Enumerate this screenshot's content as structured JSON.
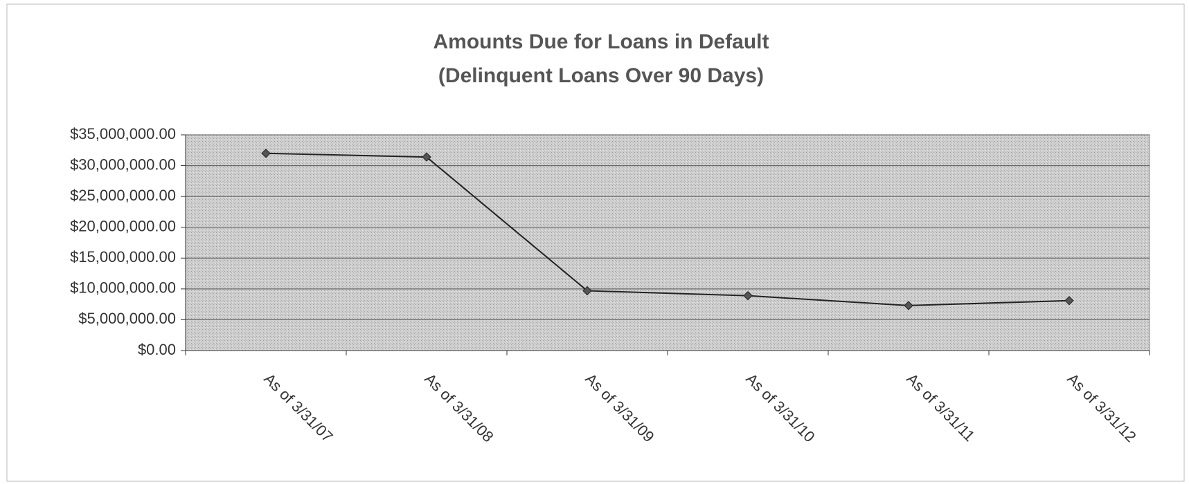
{
  "chart_data": {
    "type": "line",
    "title": "Amounts Due for Loans in Default",
    "subtitle": "(Delinquent Loans Over 90 Days)",
    "categories": [
      "As of 3/31/07",
      "As of 3/31/08",
      "As of 3/31/09",
      "As of 3/31/10",
      "As of 3/31/11",
      "As of 3/31/12"
    ],
    "series": [
      {
        "name": "Amounts Due",
        "color": "#222222",
        "values": [
          32000000,
          31400000,
          9700000,
          8900000,
          7300000,
          8100000
        ]
      }
    ],
    "ylim": [
      0,
      35000000
    ],
    "yticks": [
      {
        "value": 0,
        "label": "$0.00"
      },
      {
        "value": 5000000,
        "label": "$5,000,000.00"
      },
      {
        "value": 10000000,
        "label": "$10,000,000.00"
      },
      {
        "value": 15000000,
        "label": "$15,000,000.00"
      },
      {
        "value": 20000000,
        "label": "$20,000,000.00"
      },
      {
        "value": 25000000,
        "label": "$25,000,000.00"
      },
      {
        "value": 30000000,
        "label": "$30,000,000.00"
      },
      {
        "value": 35000000,
        "label": "$35,000,000.00"
      }
    ],
    "grid": true
  }
}
